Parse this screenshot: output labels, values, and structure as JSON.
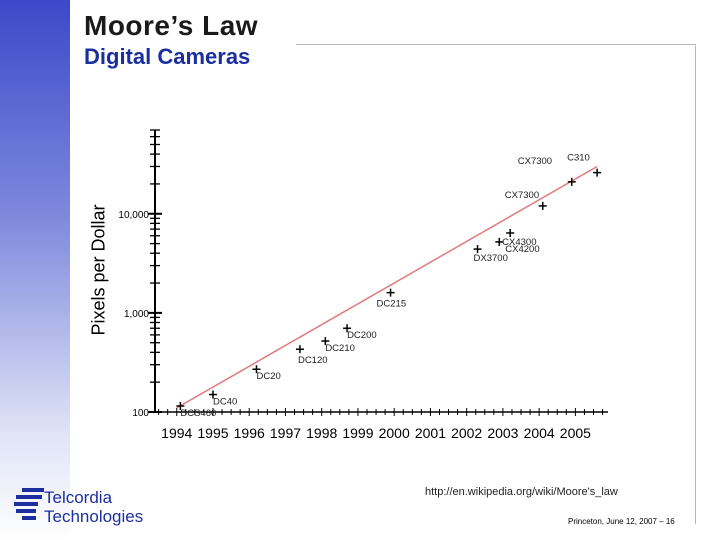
{
  "slide": {
    "title": "Moore’s Law",
    "subtitle": "Digital Cameras",
    "source_url": "http://en.wikipedia.org/wiki/Moore's_law",
    "footer": "Princeton, June 12, 2007 – 16",
    "logo_line1": "Telcordia",
    "logo_line2": "Technologies",
    "sidebar_color": "#3b49c9",
    "accent_color": "#1b2ea0"
  },
  "chart_data": {
    "type": "scatter",
    "title": "Digital Cameras",
    "xlabel": "",
    "ylabel": "Pixels per Dollar",
    "yscale": "log",
    "xlim": [
      1993.4,
      2005.9
    ],
    "ylim": [
      100,
      70000
    ],
    "x_ticks": [
      1994,
      1995,
      1996,
      1997,
      1998,
      1999,
      2000,
      2001,
      2002,
      2003,
      2004,
      2005
    ],
    "x_tick_labels": [
      "1994",
      "1995",
      "1996",
      "1997",
      "1998",
      "1999",
      "2000",
      "2001",
      "2002",
      "2003",
      "2004",
      "2005"
    ],
    "y_ticks": [
      100,
      1000,
      10000
    ],
    "y_tick_labels": [
      "100",
      "1,000",
      "10,000"
    ],
    "trend_line": {
      "x": [
        1994,
        2005.6
      ],
      "y": [
        110,
        30000
      ],
      "color": "#e07a7a"
    },
    "series": [
      {
        "name": "Digital cameras",
        "color": "#000000",
        "points": [
          {
            "label": "DCS460",
            "x": 1994.1,
            "y": 115
          },
          {
            "label": "DC40",
            "x": 1995.0,
            "y": 150
          },
          {
            "label": "DC20",
            "x": 1996.2,
            "y": 270
          },
          {
            "label": "DC120",
            "x": 1997.4,
            "y": 430
          },
          {
            "label": "DC210",
            "x": 1998.1,
            "y": 520
          },
          {
            "label": "DC200",
            "x": 1998.7,
            "y": 700
          },
          {
            "label": "DC215",
            "x": 1999.9,
            "y": 1600
          },
          {
            "label": "DX3700",
            "x": 2002.3,
            "y": 4400
          },
          {
            "label": "CX4200",
            "x": 2002.9,
            "y": 5200
          },
          {
            "label": "CX4300",
            "x": 2003.2,
            "y": 6400
          },
          {
            "label": "CX7300",
            "x": 2004.1,
            "y": 12000
          },
          {
            "label": "CX7300",
            "x": 2004.9,
            "y": 21000
          },
          {
            "label": "C310",
            "x": 2005.6,
            "y": 26000
          }
        ]
      }
    ]
  }
}
